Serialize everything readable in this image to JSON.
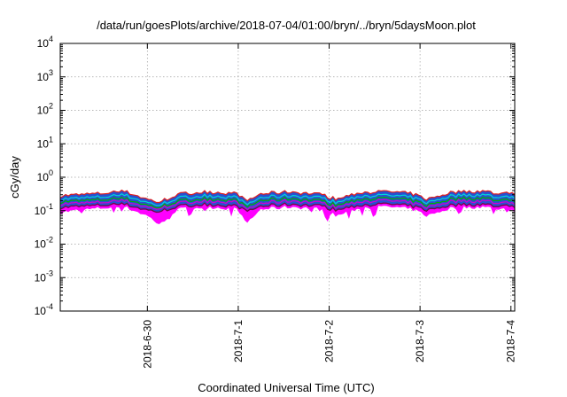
{
  "chart_data": {
    "type": "area",
    "title": "/data/run/goesPlots/archive/2018-07-04/01:00/bryn/../bryn/5daysMoon.plot",
    "xlabel": "Coordinated Universal Time (UTC)",
    "ylabel": "cGy/day",
    "yscale": "log",
    "ylim": [
      0.0001,
      10000
    ],
    "xlim": [
      "2018-06-29 01:00",
      "2018-07-04 01:00"
    ],
    "x_ticks": [
      "2018-6-30",
      "2018-7-1",
      "2018-7-2",
      "2018-7-3",
      "2018-7-4"
    ],
    "y_ticks": [
      {
        "base": "10",
        "exp": "-4"
      },
      {
        "base": "10",
        "exp": "-3"
      },
      {
        "base": "10",
        "exp": "-2"
      },
      {
        "base": "10",
        "exp": "-1"
      },
      {
        "base": "10",
        "exp": "0"
      },
      {
        "base": "10",
        "exp": "1"
      },
      {
        "base": "10",
        "exp": "2"
      },
      {
        "base": "10",
        "exp": "3"
      },
      {
        "base": "10",
        "exp": "4"
      }
    ],
    "grid": true,
    "legend": "none",
    "series_colors": {
      "band": "#2850d0",
      "lower_band": "#ff00ff",
      "top_line": "#e02020",
      "cyan_line": "#00d8d8",
      "green_line": "#00b000",
      "magenta_line": "#d000d0",
      "bottom_line": "#800040"
    },
    "series": [
      {
        "x": "2018-06-29 01:00",
        "y": [
          0.09,
          0.12,
          0.15,
          0.19,
          0.24,
          0.28
        ]
      },
      {
        "x": "2018-06-29 12:00",
        "y": [
          0.12,
          0.14,
          0.17,
          0.22,
          0.28,
          0.33
        ]
      },
      {
        "x": "2018-06-29 18:00",
        "y": [
          0.13,
          0.15,
          0.19,
          0.24,
          0.32,
          0.38
        ]
      },
      {
        "x": "2018-06-30 00:00",
        "y": [
          0.07,
          0.1,
          0.12,
          0.15,
          0.19,
          0.22
        ]
      },
      {
        "x": "2018-06-30 03:00",
        "y": [
          0.04,
          0.09,
          0.11,
          0.13,
          0.16,
          0.18
        ]
      },
      {
        "x": "2018-06-30 08:00",
        "y": [
          0.11,
          0.13,
          0.16,
          0.2,
          0.26,
          0.31
        ]
      },
      {
        "x": "2018-06-30 16:00",
        "y": [
          0.13,
          0.15,
          0.19,
          0.24,
          0.31,
          0.37
        ]
      },
      {
        "x": "2018-07-01 00:00",
        "y": [
          0.11,
          0.13,
          0.17,
          0.21,
          0.27,
          0.32
        ]
      },
      {
        "x": "2018-07-01 02:00",
        "y": [
          0.04,
          0.09,
          0.1,
          0.13,
          0.16,
          0.19
        ]
      },
      {
        "x": "2018-07-01 06:00",
        "y": [
          0.11,
          0.13,
          0.16,
          0.21,
          0.27,
          0.32
        ]
      },
      {
        "x": "2018-07-01 14:00",
        "y": [
          0.13,
          0.15,
          0.19,
          0.24,
          0.31,
          0.37
        ]
      },
      {
        "x": "2018-07-01 22:00",
        "y": [
          0.11,
          0.13,
          0.16,
          0.2,
          0.26,
          0.3
        ]
      },
      {
        "x": "2018-07-02 02:00",
        "y": [
          0.07,
          0.1,
          0.12,
          0.15,
          0.19,
          0.22
        ]
      },
      {
        "x": "2018-07-02 08:00",
        "y": [
          0.12,
          0.14,
          0.18,
          0.23,
          0.3,
          0.35
        ]
      },
      {
        "x": "2018-07-02 16:00",
        "y": [
          0.13,
          0.15,
          0.19,
          0.24,
          0.31,
          0.37
        ]
      },
      {
        "x": "2018-07-02 22:00",
        "y": [
          0.11,
          0.13,
          0.16,
          0.21,
          0.27,
          0.32
        ]
      },
      {
        "x": "2018-07-03 02:00",
        "y": [
          0.07,
          0.1,
          0.12,
          0.15,
          0.19,
          0.22
        ]
      },
      {
        "x": "2018-07-03 08:00",
        "y": [
          0.12,
          0.14,
          0.18,
          0.23,
          0.3,
          0.35
        ]
      },
      {
        "x": "2018-07-03 16:00",
        "y": [
          0.13,
          0.15,
          0.19,
          0.25,
          0.33,
          0.39
        ]
      },
      {
        "x": "2018-07-03 22:00",
        "y": [
          0.11,
          0.13,
          0.16,
          0.21,
          0.27,
          0.32
        ]
      },
      {
        "x": "2018-07-04 01:00",
        "y": [
          0.1,
          0.13,
          0.16,
          0.21,
          0.28,
          0.34
        ]
      }
    ]
  }
}
